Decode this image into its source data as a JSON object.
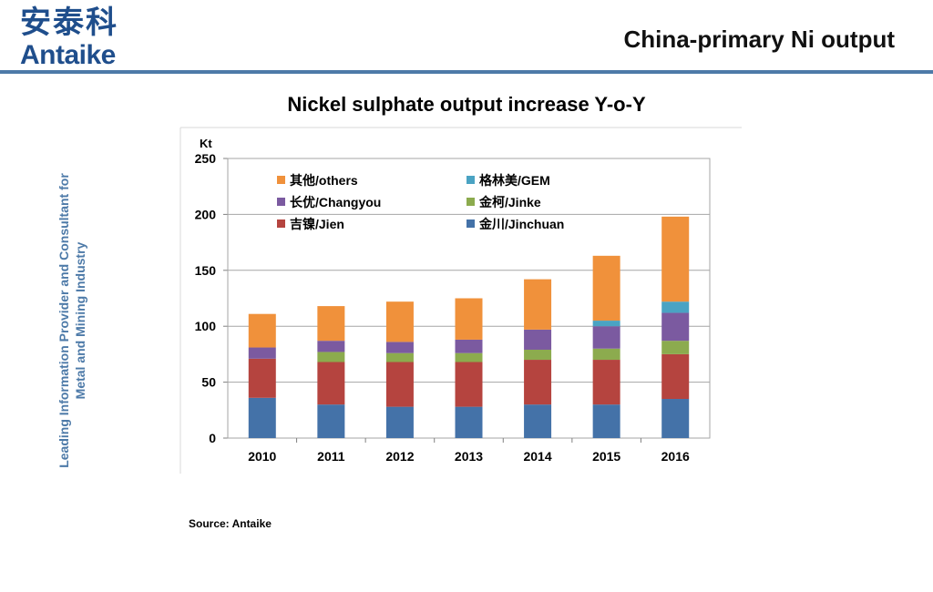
{
  "header": {
    "logo_cn": "安泰科",
    "logo_en": "Antaike",
    "title": "China-primary Ni output"
  },
  "sidebar": {
    "line1": "Leading Information Provider and Consultant for",
    "line2": "Metal and Mining Industry"
  },
  "slide_subtitle": "Nickel sulphate output increase Y-o-Y",
  "source": "Source: Antaike",
  "colors": {
    "brand": "#1f4e8c",
    "rule": "#4d7aa8",
    "jinchuan": "#4472a8",
    "jien": "#b5443f",
    "jinke": "#8cab4e",
    "changyou": "#7b5aa0",
    "gem": "#4aa3c3",
    "others": "#f0913b"
  },
  "chart_data": {
    "type": "bar",
    "stacked": true,
    "unit_label": "Kt",
    "categories": [
      "2010",
      "2011",
      "2012",
      "2013",
      "2014",
      "2015",
      "2016"
    ],
    "series": [
      {
        "name": "金川/Jinchuan",
        "color": "#4472a8",
        "values": [
          36,
          30,
          28,
          28,
          30,
          30,
          35
        ]
      },
      {
        "name": "吉镍/Jien",
        "color": "#b5443f",
        "values": [
          35,
          38,
          40,
          40,
          40,
          40,
          40
        ]
      },
      {
        "name": "金柯/Jinke",
        "color": "#8cab4e",
        "values": [
          0,
          9,
          8,
          8,
          9,
          10,
          12
        ]
      },
      {
        "name": "长优/Changyou",
        "color": "#7b5aa0",
        "values": [
          10,
          10,
          10,
          12,
          18,
          20,
          25
        ]
      },
      {
        "name": "格林美/GEM",
        "color": "#4aa3c3",
        "values": [
          0,
          0,
          0,
          0,
          0,
          5,
          10
        ]
      },
      {
        "name": "其他/others",
        "color": "#f0913b",
        "values": [
          30,
          31,
          36,
          37,
          45,
          58,
          76
        ]
      }
    ],
    "yticks": [
      "0",
      "50",
      "100",
      "150",
      "200",
      "250"
    ],
    "ylim": [
      0,
      250
    ],
    "grid": true,
    "legend_position": "top-inside"
  }
}
